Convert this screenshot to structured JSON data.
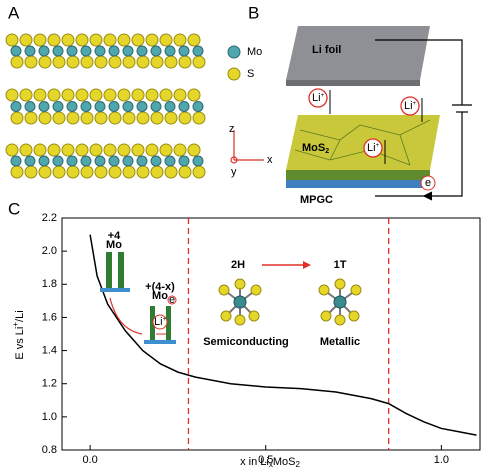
{
  "panels": {
    "a": "A",
    "b": "B",
    "c": "C"
  },
  "panel_a": {
    "legend": [
      "Mo",
      "S"
    ],
    "axes": [
      "z",
      "y",
      "x"
    ]
  },
  "panel_b": {
    "li_foil": "Li foil",
    "li_ion": {
      "main": "Li",
      "sup": "+"
    },
    "mos2": {
      "main": "MoS",
      "sub": "2"
    },
    "mpgc": "MPGC",
    "electron": "e"
  },
  "chart_data": {
    "type": "line",
    "x_label": {
      "a": "x in Li",
      "b": "x",
      "c": "MoS",
      "d": "2"
    },
    "y_label": {
      "a": "E vs Li",
      "b": "+",
      "c": "/Li"
    },
    "x": [
      0,
      0.02,
      0.05,
      0.1,
      0.15,
      0.2,
      0.25,
      0.3,
      0.4,
      0.5,
      0.6,
      0.7,
      0.8,
      0.85,
      0.9,
      0.95,
      1.0,
      1.05,
      1.1
    ],
    "values": [
      2.1,
      1.85,
      1.68,
      1.52,
      1.4,
      1.32,
      1.27,
      1.24,
      1.2,
      1.18,
      1.17,
      1.15,
      1.11,
      1.08,
      1.02,
      0.97,
      0.93,
      0.91,
      0.89
    ],
    "color": "#000000",
    "vlines": [
      0.28,
      0.85
    ],
    "vline_color": "#e0302a",
    "xlim": [
      -0.08,
      1.11
    ],
    "ylim": [
      0.8,
      2.2
    ],
    "xticks": [
      {
        "value": 0,
        "label": "0.0"
      },
      0.5,
      {
        "value": 1,
        "label": "1.0"
      }
    ],
    "yticks": [
      0.8,
      {
        "value": 1,
        "label": "1.0"
      },
      1.2,
      1.4,
      1.6,
      1.8,
      {
        "value": 2,
        "label": "2.0"
      },
      2.2
    ],
    "annotations": {
      "ox4": "+4",
      "mo1": "Mo",
      "ox4x": "+(4-x)",
      "mo2": "Mo",
      "li": "Li",
      "li_sup": "+",
      "e": "e",
      "h2": "2H",
      "t1": "1T",
      "semi": "Semiconducting",
      "metal": "Metallic"
    }
  }
}
